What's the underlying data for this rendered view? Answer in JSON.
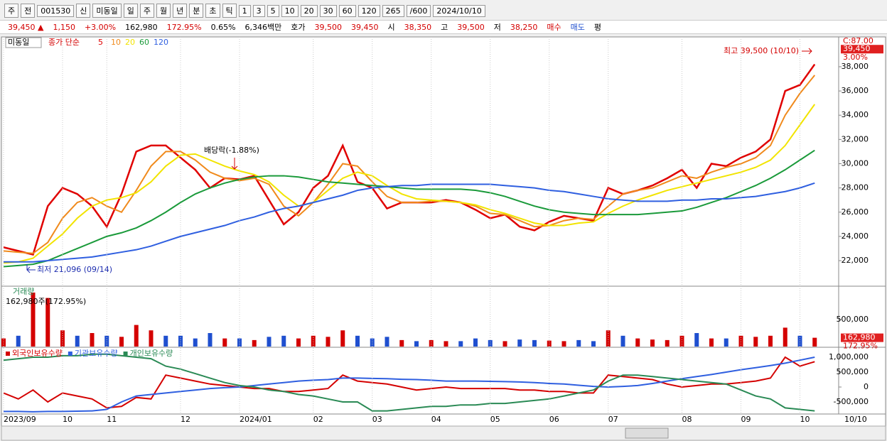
{
  "toolbar": [
    "주",
    "전",
    "001530",
    "신",
    "미동일",
    "일",
    "주",
    "월",
    "년",
    "분",
    "초",
    "틱",
    "1",
    "3",
    "5",
    "10",
    "20",
    "30",
    "60",
    "120",
    "265",
    "/600",
    "2024/10/10"
  ],
  "quote": [
    {
      "text": "39,450 ▲",
      "color": "#d40000"
    },
    {
      "text": "1,150",
      "color": "#d40000"
    },
    {
      "text": "+3.00%",
      "color": "#d40000"
    },
    {
      "text": "162,980",
      "color": "#000000"
    },
    {
      "text": "172.95%",
      "color": "#d40000"
    },
    {
      "text": "0.65%",
      "color": "#000000"
    },
    {
      "text": "6,346백만",
      "color": "#000000"
    },
    {
      "text": "호가",
      "color": "#000000"
    },
    {
      "text": "39,500",
      "color": "#d40000"
    },
    {
      "text": "39,450",
      "color": "#d40000"
    },
    {
      "text": "시",
      "color": "#000000"
    },
    {
      "text": "38,350",
      "color": "#d40000"
    },
    {
      "text": "고",
      "color": "#000000"
    },
    {
      "text": "39,500",
      "color": "#d40000"
    },
    {
      "text": "저",
      "color": "#000000"
    },
    {
      "text": "38,250",
      "color": "#d40000"
    },
    {
      "text": "매수",
      "color": "#d40000"
    },
    {
      "text": "매도",
      "color": "#1f4fcf"
    },
    {
      "text": "평",
      "color": "#000000"
    }
  ],
  "chart_data": [
    {
      "type": "line",
      "stock": "미동일",
      "legend_prefix": "종가 단순",
      "top_label": "C:87.00",
      "current": {
        "value": 39450,
        "label": "39,450"
      },
      "current_change": "3.00%",
      "last_date_label": "10/10",
      "annotations": [
        "최고 39,500 (10/10)",
        "최저 21,096 (09/14)",
        "배당락(-1.88%)"
      ],
      "categories": [
        "2023/09",
        null,
        null,
        null,
        "10",
        null,
        null,
        "11",
        null,
        null,
        null,
        null,
        "12",
        null,
        null,
        null,
        "2024/01",
        null,
        null,
        null,
        null,
        "02",
        null,
        null,
        null,
        "03",
        null,
        null,
        null,
        "04",
        null,
        null,
        null,
        "05",
        null,
        null,
        null,
        "06",
        null,
        null,
        null,
        "07",
        null,
        null,
        null,
        null,
        "08",
        null,
        null,
        null,
        "09",
        null,
        null,
        null,
        "10",
        null
      ],
      "ylim": [
        19950,
        40460
      ],
      "yticks": [
        {
          "value": 22000,
          "label": "22,000"
        },
        {
          "value": 24000,
          "label": "24,000"
        },
        {
          "value": 26000,
          "label": "26,000"
        },
        {
          "value": 28000,
          "label": "28,000"
        },
        {
          "value": 30000,
          "label": "30,000"
        },
        {
          "value": 32000,
          "label": "32,000"
        },
        {
          "value": 34000,
          "label": "34,000"
        },
        {
          "value": 36000,
          "label": "36,000"
        },
        {
          "value": 38000,
          "label": "38,000"
        }
      ],
      "series": [
        {
          "name": "5",
          "color": "#e00000",
          "values": [
            23100,
            22800,
            22500,
            26500,
            28000,
            27500,
            26500,
            24800,
            27500,
            31000,
            31500,
            31500,
            30500,
            29500,
            28000,
            28800,
            28700,
            29000,
            27000,
            25000,
            26000,
            28000,
            29000,
            31500,
            28500,
            28000,
            26300,
            26800,
            26800,
            26800,
            27000,
            26800,
            26200,
            25500,
            25800,
            24800,
            24500,
            25200,
            25700,
            25500,
            25300,
            28000,
            27500,
            27800,
            28200,
            28800,
            29500,
            28000,
            30000,
            29800,
            30500,
            31000,
            32000,
            36000,
            36500,
            38200
          ]
        },
        {
          "name": "10",
          "color": "#f08a1c",
          "values": [
            22800,
            22700,
            22600,
            23500,
            25500,
            26800,
            27200,
            26500,
            26000,
            27800,
            29800,
            31000,
            31000,
            30300,
            29300,
            28800,
            28600,
            28800,
            28300,
            26500,
            25700,
            26800,
            28300,
            30000,
            29800,
            28500,
            27300,
            26800,
            26800,
            26900,
            26900,
            26800,
            26500,
            25900,
            25800,
            25300,
            24800,
            24900,
            25300,
            25500,
            25400,
            26500,
            27500,
            27800,
            28000,
            28500,
            29000,
            28800,
            29300,
            29700,
            30000,
            30500,
            31500,
            34000,
            35800,
            37300
          ]
        },
        {
          "name": "20",
          "color": "#f2e400",
          "values": [
            21800,
            21900,
            22200,
            23200,
            24200,
            25500,
            26500,
            27000,
            27200,
            27600,
            28500,
            29800,
            30700,
            30800,
            30300,
            29800,
            29400,
            29100,
            28500,
            27400,
            26500,
            26800,
            27800,
            28800,
            29300,
            29000,
            28200,
            27500,
            27100,
            27000,
            26900,
            26800,
            26600,
            26200,
            25900,
            25500,
            25100,
            24900,
            24900,
            25100,
            25200,
            25900,
            26500,
            27000,
            27400,
            27800,
            28100,
            28400,
            28700,
            29000,
            29300,
            29700,
            30300,
            31500,
            33200,
            34900
          ]
        },
        {
          "name": "60",
          "color": "#1a9a3a",
          "values": [
            21500,
            21600,
            21700,
            22000,
            22500,
            23000,
            23500,
            24000,
            24300,
            24700,
            25300,
            26000,
            26800,
            27500,
            28000,
            28400,
            28700,
            28900,
            29000,
            29000,
            28900,
            28700,
            28500,
            28400,
            28300,
            28200,
            28100,
            28000,
            27900,
            27900,
            27900,
            27900,
            27800,
            27600,
            27300,
            26900,
            26500,
            26200,
            26000,
            25900,
            25800,
            25800,
            25800,
            25800,
            25900,
            26000,
            26100,
            26400,
            26800,
            27200,
            27700,
            28200,
            28800,
            29500,
            30300,
            31100
          ]
        },
        {
          "name": "120",
          "color": "#2f5fe0",
          "values": [
            21900,
            21900,
            21900,
            22000,
            22100,
            22200,
            22300,
            22500,
            22700,
            22900,
            23200,
            23600,
            24000,
            24300,
            24600,
            24900,
            25300,
            25600,
            26000,
            26300,
            26500,
            26800,
            27100,
            27400,
            27800,
            28000,
            28100,
            28200,
            28200,
            28300,
            28300,
            28300,
            28300,
            28300,
            28200,
            28100,
            28000,
            27800,
            27700,
            27500,
            27300,
            27100,
            27000,
            26900,
            26900,
            26900,
            27000,
            27000,
            27100,
            27100,
            27200,
            27300,
            27500,
            27700,
            28000,
            28400
          ]
        }
      ]
    },
    {
      "type": "bar",
      "title": "거래량",
      "subtitle": "162,980주(172.95%)",
      "current": {
        "value": 162980,
        "label": "162,980"
      },
      "current_change": "172.95%",
      "ylim": [
        0,
        1092000
      ],
      "yticks": [
        {
          "value": 500000,
          "label": "500,000"
        }
      ],
      "values": [
        150000,
        200000,
        1000000,
        900000,
        300000,
        200000,
        250000,
        200000,
        180000,
        400000,
        300000,
        200000,
        200000,
        150000,
        250000,
        150000,
        150000,
        120000,
        180000,
        200000,
        150000,
        200000,
        180000,
        300000,
        200000,
        150000,
        180000,
        120000,
        100000,
        120000,
        100000,
        100000,
        150000,
        120000,
        100000,
        130000,
        120000,
        110000,
        100000,
        120000,
        100000,
        300000,
        200000,
        150000,
        130000,
        120000,
        200000,
        250000,
        150000,
        150000,
        200000,
        180000,
        200000,
        350000,
        200000,
        162980
      ],
      "bar_colors": [
        "#d40000",
        "#1f4fcf",
        "#d40000",
        "#d40000",
        "#d40000",
        "#1f4fcf",
        "#d40000",
        "#1f4fcf",
        "#d40000",
        "#d40000",
        "#d40000",
        "#1f4fcf",
        "#1f4fcf",
        "#1f4fcf",
        "#1f4fcf",
        "#d40000",
        "#1f4fcf",
        "#d40000",
        "#1f4fcf",
        "#1f4fcf",
        "#d40000",
        "#d40000",
        "#d40000",
        "#d40000",
        "#1f4fcf",
        "#1f4fcf",
        "#1f4fcf",
        "#d40000",
        "#1f4fcf",
        "#d40000",
        "#d40000",
        "#1f4fcf",
        "#1f4fcf",
        "#1f4fcf",
        "#d40000",
        "#1f4fcf",
        "#1f4fcf",
        "#d40000",
        "#d40000",
        "#1f4fcf",
        "#1f4fcf",
        "#d40000",
        "#1f4fcf",
        "#d40000",
        "#d40000",
        "#d40000",
        "#d40000",
        "#1f4fcf",
        "#d40000",
        "#1f4fcf",
        "#d40000",
        "#d40000",
        "#d40000",
        "#d40000",
        "#1f4fcf",
        "#d40000"
      ]
    },
    {
      "type": "line",
      "ylim": [
        -905000,
        1262000
      ],
      "yticks": [
        {
          "value": -500000,
          "label": "-500,000"
        },
        0,
        {
          "value": 500000,
          "label": "500,000"
        },
        {
          "value": 1000000,
          "label": "1,000,000"
        }
      ],
      "series": [
        {
          "name": "외국인보유수량",
          "color": "#d40000",
          "values": [
            -200000,
            -400000,
            -100000,
            -500000,
            -200000,
            -300000,
            -400000,
            -700000,
            -650000,
            -350000,
            -400000,
            400000,
            300000,
            200000,
            100000,
            50000,
            0,
            -50000,
            -50000,
            -150000,
            -150000,
            -100000,
            -50000,
            400000,
            200000,
            150000,
            100000,
            0,
            -100000,
            -50000,
            0,
            -50000,
            -50000,
            -50000,
            -50000,
            -100000,
            -100000,
            -150000,
            -150000,
            -200000,
            -200000,
            400000,
            350000,
            300000,
            250000,
            100000,
            0,
            50000,
            100000,
            100000,
            150000,
            200000,
            300000,
            1000000,
            700000,
            850000
          ]
        },
        {
          "name": "기관보유수량",
          "color": "#2f5fe0",
          "values": [
            -820000,
            -820000,
            -830000,
            -820000,
            -820000,
            -810000,
            -800000,
            -750000,
            -500000,
            -300000,
            -250000,
            -200000,
            -150000,
            -100000,
            -50000,
            -20000,
            0,
            50000,
            100000,
            150000,
            200000,
            230000,
            250000,
            300000,
            300000,
            290000,
            280000,
            260000,
            250000,
            230000,
            200000,
            200000,
            200000,
            190000,
            180000,
            170000,
            150000,
            120000,
            100000,
            60000,
            20000,
            0,
            20000,
            50000,
            120000,
            200000,
            280000,
            350000,
            420000,
            500000,
            580000,
            650000,
            720000,
            800000,
            900000,
            1000000
          ]
        },
        {
          "name": "개인보유수량",
          "color": "#2a8a55",
          "values": [
            900000,
            950000,
            1000000,
            1000000,
            1050000,
            1050000,
            1100000,
            1100000,
            1050000,
            1000000,
            950000,
            700000,
            600000,
            450000,
            300000,
            150000,
            50000,
            0,
            -100000,
            -150000,
            -250000,
            -300000,
            -400000,
            -500000,
            -500000,
            -800000,
            -800000,
            -750000,
            -700000,
            -650000,
            -650000,
            -600000,
            -600000,
            -550000,
            -550000,
            -500000,
            -450000,
            -400000,
            -300000,
            -200000,
            -100000,
            200000,
            400000,
            400000,
            350000,
            300000,
            250000,
            200000,
            150000,
            100000,
            -100000,
            -300000,
            -400000,
            -700000,
            -750000,
            -800000
          ]
        }
      ]
    }
  ]
}
